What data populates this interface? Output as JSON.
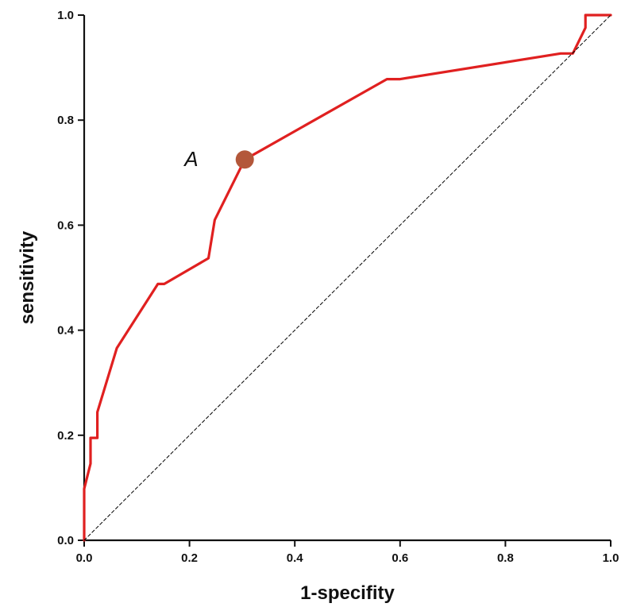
{
  "chart_data": {
    "type": "line",
    "title": "",
    "xlabel": "1-specifity",
    "ylabel": "sensitivity",
    "xlim": [
      0,
      1
    ],
    "ylim": [
      0,
      1
    ],
    "x_ticks": [
      0.0,
      0.2,
      0.4,
      0.6,
      0.8,
      1.0
    ],
    "y_ticks": [
      0.0,
      0.2,
      0.4,
      0.6,
      0.8,
      1.0
    ],
    "x_tick_labels": [
      "0.0",
      "0.2",
      "0.4",
      "0.6",
      "0.8",
      "1.0"
    ],
    "y_tick_labels": [
      "0.0",
      "0.2",
      "0.4",
      "0.6",
      "0.8",
      "1.0"
    ],
    "grid": false,
    "legend": "none",
    "series": [
      {
        "color": "#e02020",
        "x": [
          0.0,
          0.0,
          0.012,
          0.012,
          0.025,
          0.025,
          0.062,
          0.14,
          0.152,
          0.236,
          0.248,
          0.305,
          0.575,
          0.6,
          0.905,
          0.928,
          0.952,
          0.952,
          1.0
        ],
        "y": [
          0.0,
          0.098,
          0.146,
          0.195,
          0.195,
          0.244,
          0.366,
          0.488,
          0.488,
          0.537,
          0.61,
          0.725,
          0.878,
          0.878,
          0.927,
          0.927,
          0.976,
          1.0,
          1.0
        ]
      },
      {
        "color": "#000000",
        "style": "dashed",
        "x": [
          0,
          1
        ],
        "y": [
          0,
          1
        ]
      }
    ],
    "annotations": [
      {
        "text": "A",
        "x": 0.305,
        "y": 0.725,
        "marker_color": "#b3573a"
      }
    ]
  }
}
